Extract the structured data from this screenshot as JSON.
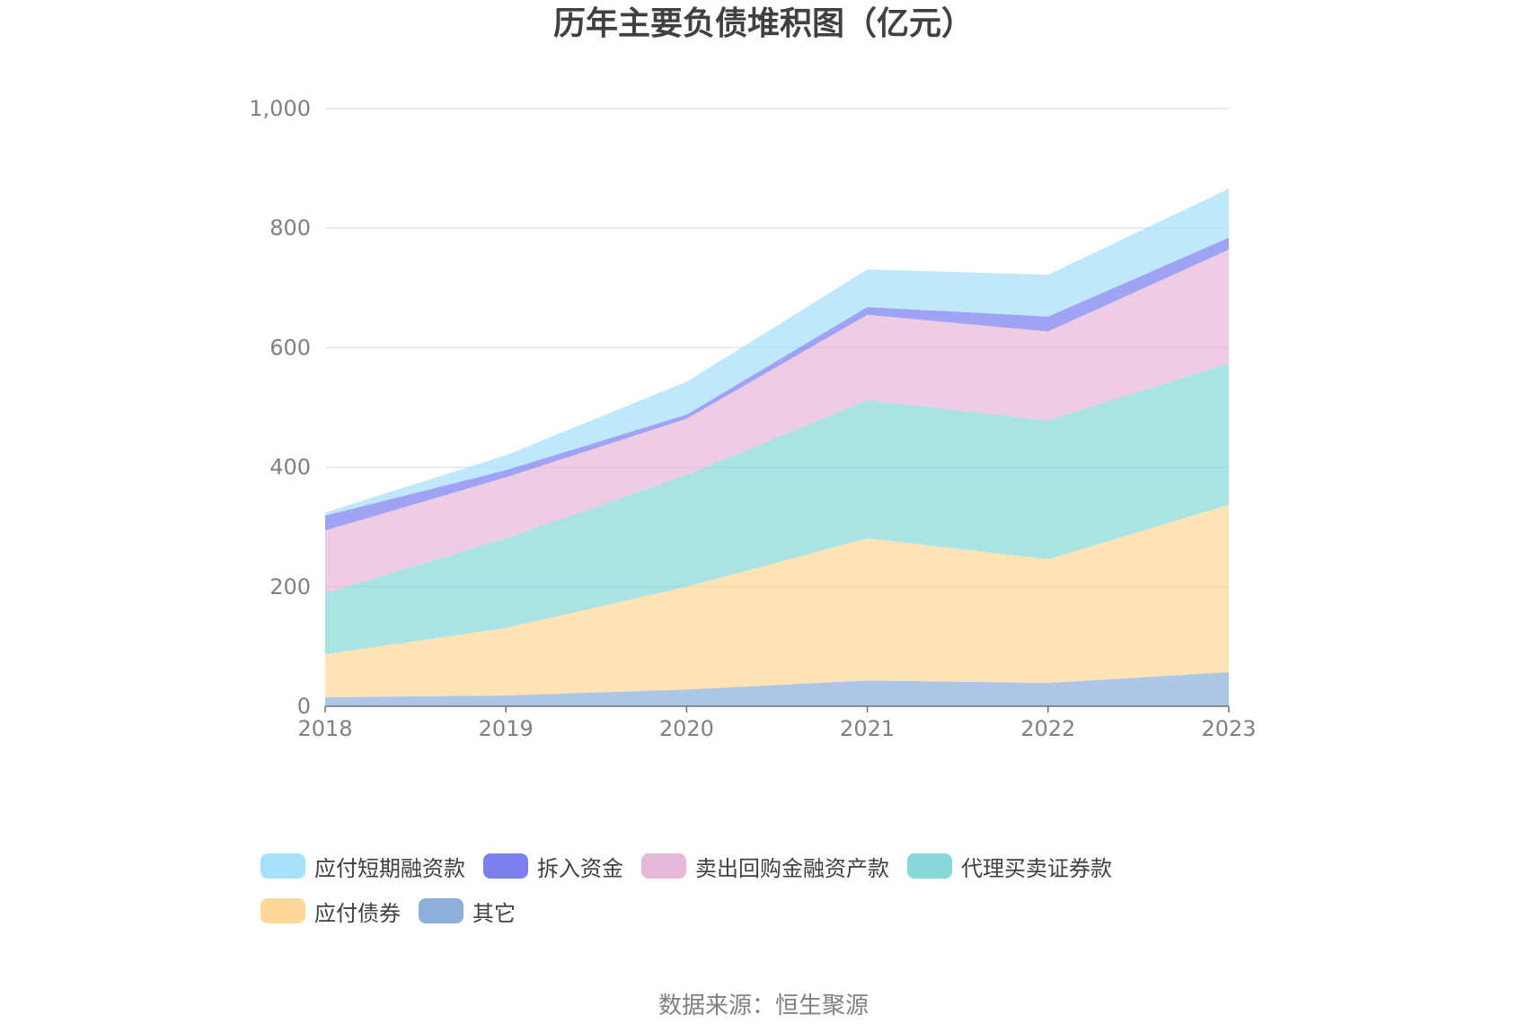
{
  "chart_data": {
    "type": "area",
    "stacked": true,
    "title": "历年主要负债堆积图（亿元）",
    "categories": [
      "2018",
      "2019",
      "2020",
      "2021",
      "2022",
      "2023"
    ],
    "y_ticks": [
      "0",
      "200",
      "400",
      "600",
      "800",
      "1,000"
    ],
    "ylim": [
      0,
      1000
    ],
    "grid": true,
    "legend_position": "bottom",
    "series": [
      {
        "name": "其它",
        "color": "#8eaedc",
        "values": [
          15,
          18,
          28,
          43,
          39,
          57
        ]
      },
      {
        "name": "应付债券",
        "color": "#fdd898",
        "values": [
          72,
          113,
          172,
          238,
          207,
          280
        ]
      },
      {
        "name": "代理买卖证券款",
        "color": "#88d8d8",
        "values": [
          102,
          150,
          187,
          231,
          232,
          237
        ]
      },
      {
        "name": "卖出回购金融资产款",
        "color": "#e8b8d8",
        "values": [
          105,
          102,
          94,
          143,
          149,
          190
        ]
      },
      {
        "name": "拆入资金",
        "color": "#7b7ff0",
        "values": [
          25,
          12,
          7,
          13,
          25,
          20
        ]
      },
      {
        "name": "应付短期融资款",
        "color": "#a6e0fa",
        "values": [
          5,
          25,
          55,
          63,
          70,
          82
        ]
      }
    ],
    "legend_order": [
      "应付短期融资款",
      "拆入资金",
      "卖出回购金融资产款",
      "代理买卖证券款",
      "应付债券",
      "其它"
    ]
  },
  "source": "数据来源：恒生聚源"
}
